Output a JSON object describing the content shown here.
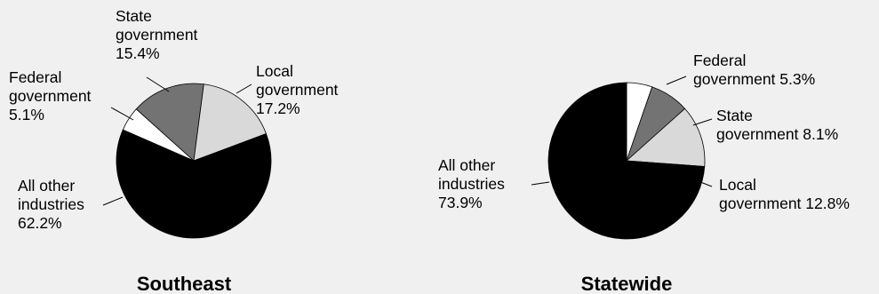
{
  "colors": {
    "background": "#f0f0f0",
    "federal": "#ffffff",
    "state": "#737373",
    "local": "#d9d9d9",
    "other": "#000000"
  },
  "chart_data": [
    {
      "type": "pie",
      "title": "Southeast",
      "slices": [
        {
          "key": "federal",
          "label_lines": [
            "Federal",
            "government",
            "5.1%"
          ],
          "value": 5.1
        },
        {
          "key": "state",
          "label_lines": [
            "State",
            "government",
            "15.4%"
          ],
          "value": 15.4
        },
        {
          "key": "local",
          "label_lines": [
            "Local",
            "government",
            "17.2%"
          ],
          "value": 17.2
        },
        {
          "key": "other",
          "label_lines": [
            "All other",
            "industries",
            "62.2%"
          ],
          "value": 62.2
        }
      ]
    },
    {
      "type": "pie",
      "title": "Statewide",
      "slices": [
        {
          "key": "federal",
          "label_lines": [
            "Federal",
            "government  5.3%"
          ],
          "value": 5.3
        },
        {
          "key": "state",
          "label_lines": [
            "State",
            "government  8.1%"
          ],
          "value": 8.1
        },
        {
          "key": "local",
          "label_lines": [
            "Local",
            "government 12.8%"
          ],
          "value": 12.8
        },
        {
          "key": "other",
          "label_lines": [
            "All other",
            "industries",
            "73.9%"
          ],
          "value": 73.9
        }
      ]
    }
  ]
}
